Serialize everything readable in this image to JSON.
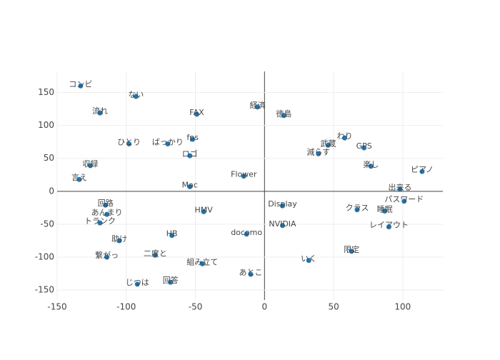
{
  "chart_data": {
    "type": "scatter",
    "color": "#1f77b4",
    "grid": true,
    "xlim": [
      -150,
      129
    ],
    "ylim": [
      -165,
      182
    ],
    "xticks": [
      -150,
      -100,
      -50,
      0,
      50,
      100
    ],
    "yticks": [
      -150,
      -100,
      -50,
      0,
      50,
      100,
      150
    ],
    "labels": [
      "コンビ",
      "ない",
      "流れ",
      "FAX",
      "経済",
      "徳島",
      "わり",
      "GPS",
      "ピアノ",
      "出来る",
      "パスワード",
      "睡眠",
      "レイアウト",
      "限定",
      "いく",
      "組み立て",
      "あとこ",
      "回答",
      "じつは",
      "二度と",
      "繋がっ",
      "助け",
      "トランク",
      "あんまり",
      "回路",
      "言え",
      "収録",
      "ひとり",
      "ばっかり",
      "fps",
      "docomo",
      "NVIDIA",
      "Display",
      "Flower",
      "HMV",
      "HB",
      "Mac",
      "ロゴ",
      "減らす",
      "武蔵",
      "楽し",
      "クラス"
    ],
    "x": [
      -133,
      -93,
      -119,
      -49,
      -5,
      14,
      58,
      72,
      114,
      98,
      101,
      87,
      90,
      63,
      32,
      -45,
      -10,
      -68,
      -92,
      -79,
      -114,
      -105,
      -119,
      -114,
      -115,
      -134,
      -126,
      -98,
      -70,
      -52,
      -13,
      13,
      13,
      -15,
      -44,
      -67,
      -54,
      -54,
      39,
      46,
      77,
      67
    ],
    "y": [
      160,
      144,
      119,
      117,
      128,
      115,
      81,
      66,
      30,
      3,
      -15,
      -30,
      -54,
      -91,
      -105,
      -110,
      -126,
      -138,
      -141,
      -97,
      -100,
      -75,
      -48,
      -35,
      -21,
      18,
      39,
      72,
      72,
      79,
      -65,
      -52,
      -22,
      23,
      -31,
      -67,
      7,
      54,
      57,
      70,
      38,
      -28
    ]
  }
}
